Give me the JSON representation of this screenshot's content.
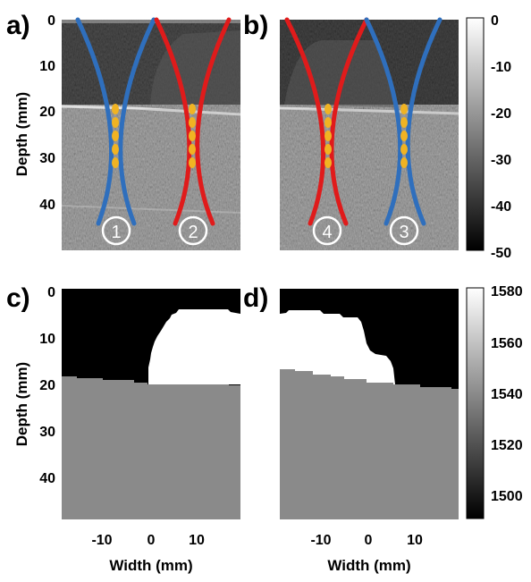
{
  "panels": [
    {
      "letter": "a)",
      "kind": "ultrasound"
    },
    {
      "letter": "b)",
      "kind": "ultrasound"
    },
    {
      "letter": "c)",
      "kind": "sos_map"
    },
    {
      "letter": "d)",
      "kind": "sos_map"
    }
  ],
  "y_axis": {
    "label": "Depth (mm)",
    "ticks_top": [
      "0",
      "10",
      "20",
      "30",
      "40"
    ],
    "ticks_bottom": [
      "0",
      "10",
      "20",
      "30",
      "40"
    ]
  },
  "x_axis": {
    "label": "Width (mm)",
    "ticks": [
      "-10",
      "0",
      "10"
    ]
  },
  "colorbar_top": {
    "ticks": [
      "0",
      "-10",
      "-20",
      "-30",
      "-40",
      "-50"
    ]
  },
  "colorbar_bottom": {
    "ticks": [
      "1580",
      "1560",
      "1540",
      "1520",
      "1500"
    ]
  },
  "beam_labels": {
    "a": [
      "1",
      "2"
    ],
    "b": [
      "4",
      "3"
    ]
  },
  "colors": {
    "beam_blue": "#2f6fbd",
    "beam_red": "#e01b1b",
    "focus_dots": "#f0b323",
    "tissue_gray": "#8a8a8a",
    "inclusion_white": "#ffffff",
    "background_black": "#000000"
  }
}
